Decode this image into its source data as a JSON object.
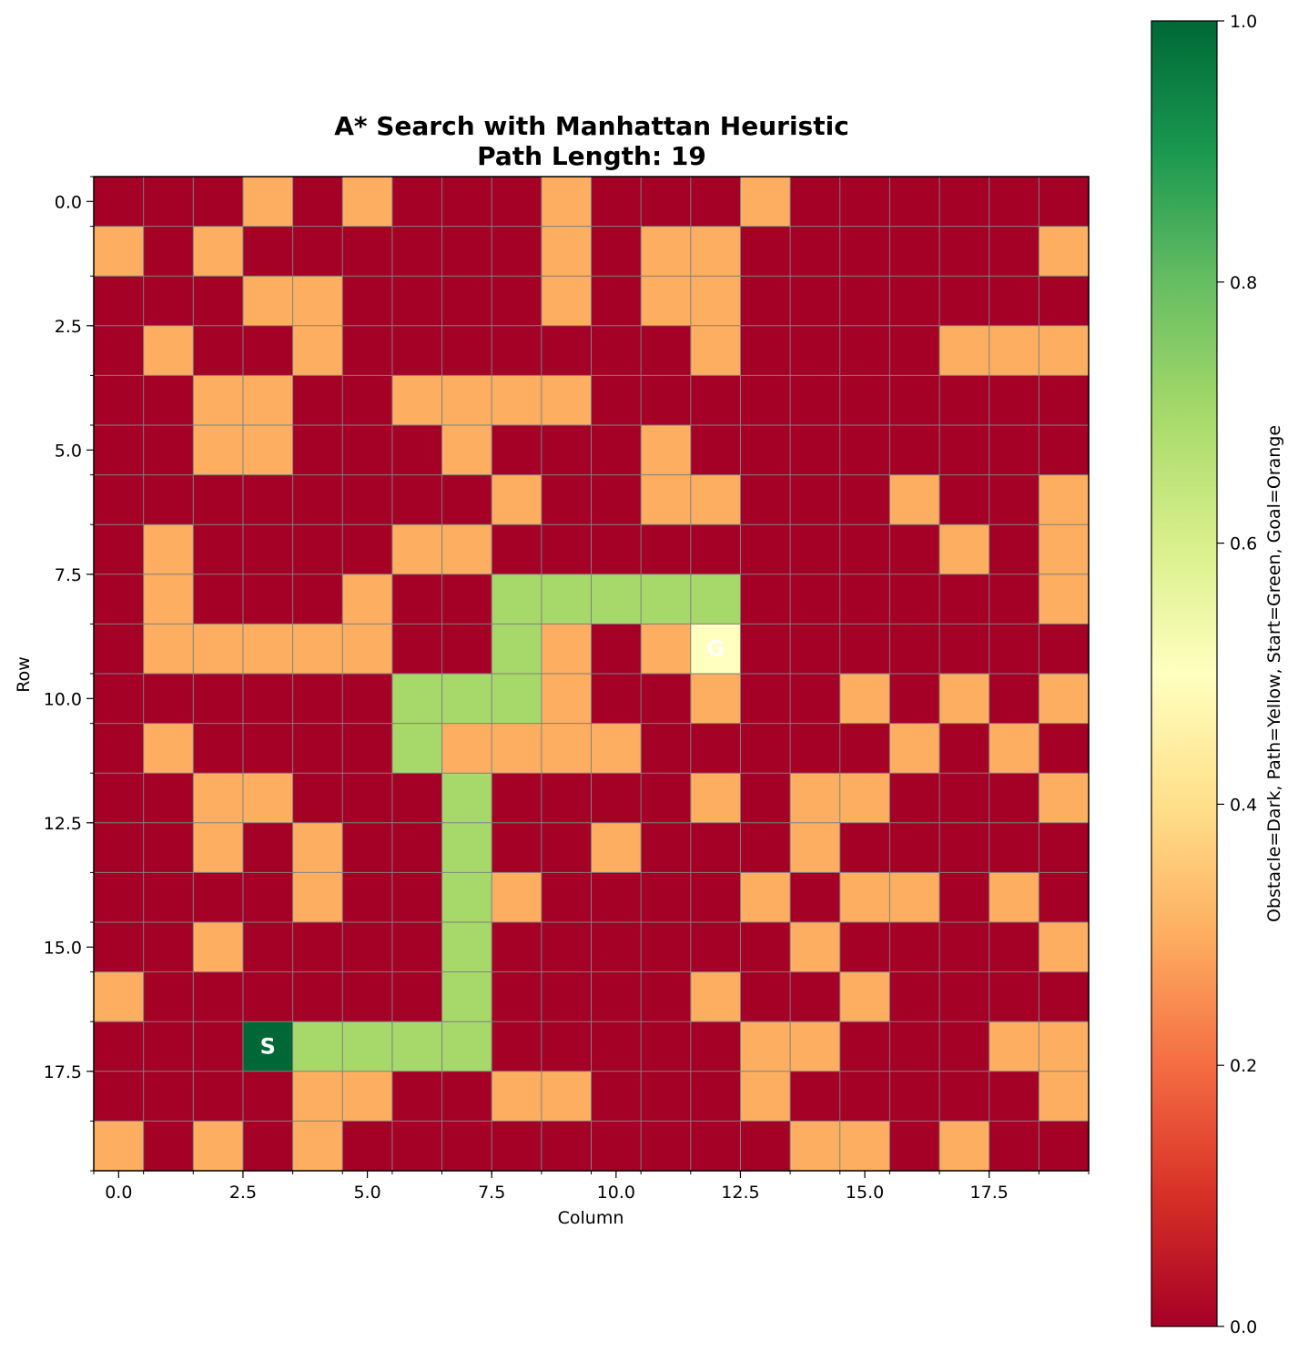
{
  "chart_data": {
    "type": "heatmap",
    "title_line1": "A* Search with Manhattan Heuristic",
    "title_line2": "Path Length: 19",
    "xlabel": "Column",
    "ylabel": "Row",
    "colorbar_label": "Obstacle=Dark, Path=Yellow, Start=Green, Goal=Orange",
    "colormap": "RdYlGn",
    "color_range": [
      0,
      1
    ],
    "x_ticks": [
      "0.0",
      "2.5",
      "5.0",
      "7.5",
      "10.0",
      "12.5",
      "15.0",
      "17.5"
    ],
    "y_ticks": [
      "0.0",
      "2.5",
      "5.0",
      "7.5",
      "10.0",
      "12.5",
      "15.0",
      "17.5"
    ],
    "colorbar_ticks": [
      "0.0",
      "0.2",
      "0.4",
      "0.6",
      "0.8",
      "1.0"
    ],
    "grid": true,
    "rows": 20,
    "cols": 20,
    "cell_values": {
      "0": 0.0,
      "1": 0.3,
      "2": 0.7,
      "3": 1.0,
      "4": 0.5
    },
    "grid_values": [
      "00010100010001000000",
      "10100000010110000001",
      "00011000010110000000",
      "01001000000010000111",
      "00110011110000000000",
      "00110001000100000000",
      "00000000100110001001",
      "01000011000000000101",
      "01000100222220000001",
      "01111100210140000000",
      "00000022210010010101",
      "01000021111000001010",
      "00110002000010110001",
      "00101002001000100000",
      "00001002100001011010",
      "00100002000000100001",
      "10000002000010010000",
      "00032222000001100011",
      "00001100110001000001",
      "10101000000000110100"
    ],
    "start": {
      "row": 17,
      "col": 3,
      "label": "S"
    },
    "goal": {
      "row": 9,
      "col": 12,
      "label": "G"
    },
    "colors": {
      "obstacle_dark": "#a50026",
      "cell_orange": "#fdad60",
      "path_green": "#a4d869",
      "start_green": "#006837",
      "goal_yellow": "#feffbe",
      "grid_line": "#808080"
    }
  }
}
